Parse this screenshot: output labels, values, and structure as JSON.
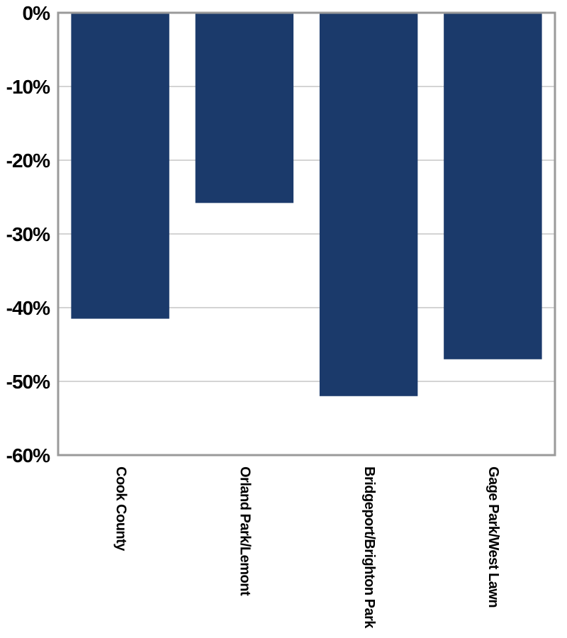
{
  "chart_data": {
    "type": "bar",
    "title": "",
    "xlabel": "",
    "ylabel": "",
    "categories": [
      "Cook County",
      "Orland Park/Lemont",
      "Bridgeport/Brighton Park",
      "Gage Park/West Lawn"
    ],
    "values": [
      -41.5,
      -25.8,
      -52.0,
      -47.0
    ],
    "value_unit": "%",
    "ylim": [
      -60,
      0
    ],
    "yticks": [
      0,
      -10,
      -20,
      -30,
      -40,
      -50,
      -60
    ],
    "ytick_labels": [
      "0%",
      "-10%",
      "-20%",
      "-30%",
      "-40%",
      "-50%",
      "-60%"
    ],
    "grid": true,
    "bar_color": "#1b3a6b",
    "grid_color": "#a8a8a8",
    "frame_color": "#9a9a9a"
  }
}
